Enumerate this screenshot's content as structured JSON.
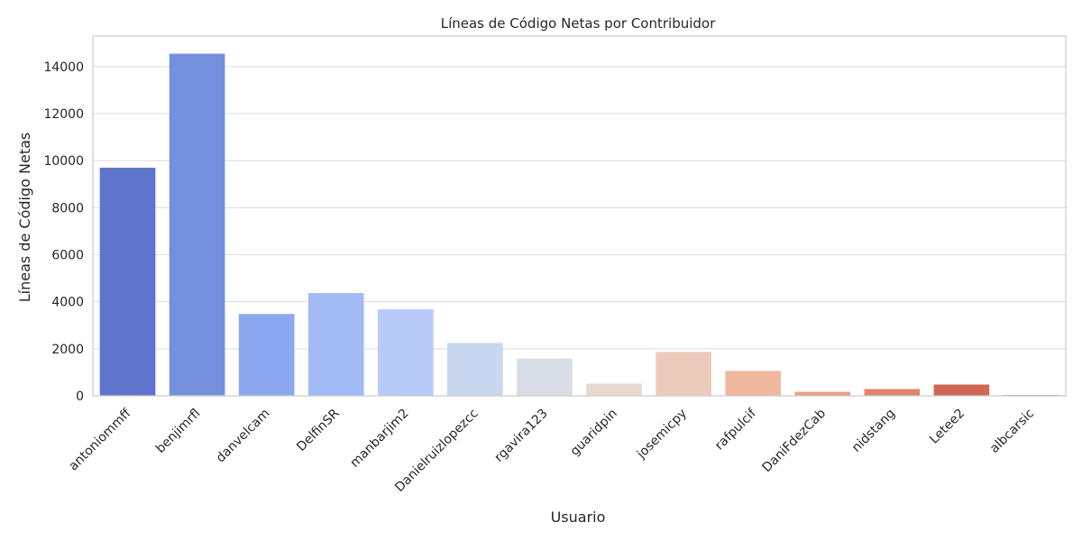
{
  "chart_data": {
    "type": "bar",
    "title": "Líneas de Código Netas por Contribuidor",
    "xlabel": "Usuario",
    "ylabel": "Líneas de Código Netas",
    "categories": [
      "antoniommff",
      "benjimrfl",
      "danvelcam",
      "DelfinSR",
      "manbarjim2",
      "Danielruizlopezcc",
      "rgavira123",
      "guaridpin",
      "josemicpy",
      "rafpulcif",
      "DaniFdezCab",
      "nidstang",
      "Letee2",
      "albcarsic"
    ],
    "values": [
      9700,
      14550,
      3480,
      4370,
      3680,
      2250,
      1580,
      520,
      1870,
      1060,
      170,
      290,
      480,
      30
    ],
    "ylim": [
      0,
      15300
    ],
    "yticks": [
      0,
      2000,
      4000,
      6000,
      8000,
      10000,
      12000,
      14000
    ],
    "grid": "horizontal",
    "palette": "coolwarm",
    "colors": [
      "#5f74cb",
      "#758fdf",
      "#8ba7ee",
      "#a2bbf6",
      "#b8cbf8",
      "#c9d6f0",
      "#d8dce4",
      "#e6d9cf",
      "#eccbba",
      "#efb89f",
      "#ea9f84",
      "#df856c",
      "#ce6855",
      "#b8433c"
    ]
  }
}
